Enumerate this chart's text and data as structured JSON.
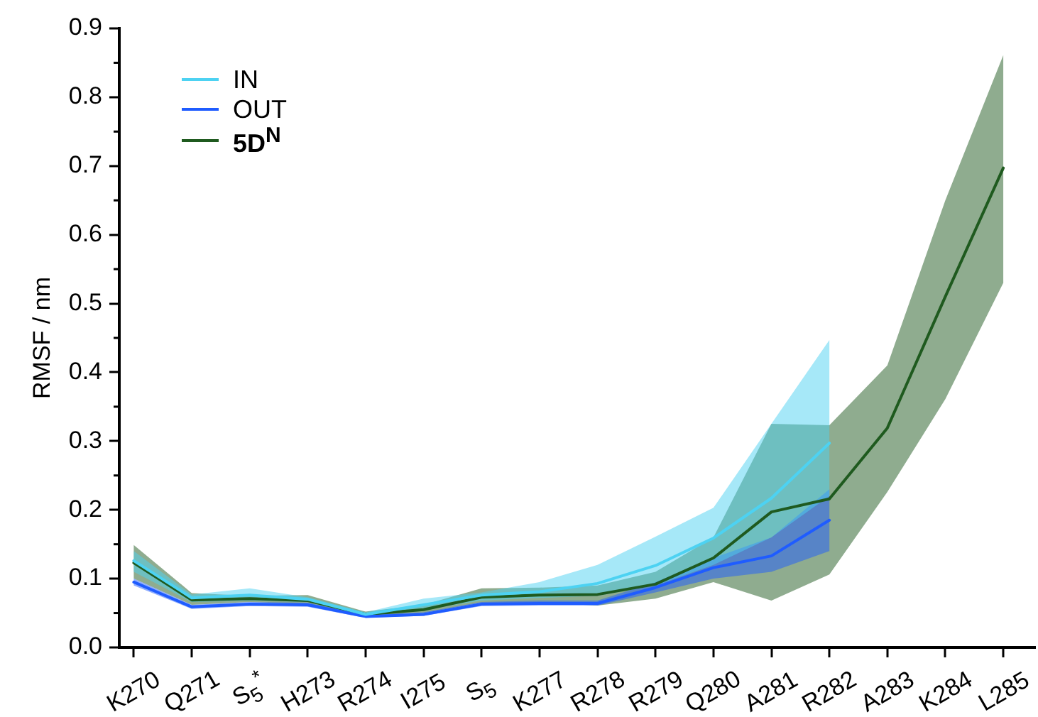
{
  "chart_data": {
    "type": "line",
    "ylabel": "RMSF / nm",
    "categories": [
      "K270",
      "Q271",
      "S$_{5}$$^{*}$",
      "H273",
      "R274",
      "I275",
      "S$_{5}$",
      "K277",
      "R278",
      "R279",
      "Q280",
      "A281",
      "R282",
      "A283",
      "K284",
      "L285"
    ],
    "ylim": [
      0,
      0.9
    ],
    "yticks": [
      {
        "value": 0,
        "label": "0.0"
      },
      {
        "value": 0.05,
        "label": null
      },
      0.1,
      {
        "value": 0.15,
        "label": null
      },
      0.2,
      {
        "value": 0.25,
        "label": null
      },
      0.3,
      {
        "value": 0.35,
        "label": null
      },
      0.4,
      {
        "value": 0.45,
        "label": null
      },
      0.5,
      {
        "value": 0.55,
        "label": null
      },
      0.6,
      {
        "value": 0.65,
        "label": null
      },
      0.7,
      {
        "value": 0.75,
        "label": null
      },
      0.8,
      {
        "value": 0.85,
        "label": null
      },
      0.9
    ],
    "legend": "top left",
    "series": [
      {
        "name": "IN",
        "color": "#4dd2f2",
        "values": [
          0.126,
          0.072,
          0.076,
          0.07,
          0.048,
          0.062,
          0.076,
          0.081,
          0.093,
          0.119,
          0.159,
          0.217,
          0.297,
          null,
          null,
          null
        ],
        "lower": [
          0.11,
          0.066,
          0.068,
          0.066,
          0.046,
          0.055,
          0.068,
          0.072,
          0.075,
          0.09,
          0.12,
          0.16,
          0.22,
          null,
          null,
          null
        ],
        "upper": [
          0.14,
          0.077,
          0.086,
          0.073,
          0.051,
          0.071,
          0.08,
          0.095,
          0.12,
          0.161,
          0.203,
          0.325,
          0.447,
          null,
          null,
          null
        ]
      },
      {
        "name": "OUT",
        "color": "#1f5cff",
        "values": [
          0.095,
          0.059,
          0.063,
          0.062,
          0.045,
          0.048,
          0.063,
          0.064,
          0.064,
          0.087,
          0.116,
          0.133,
          0.185,
          null,
          null,
          null
        ],
        "lower": [
          0.09,
          0.056,
          0.06,
          0.059,
          0.043,
          0.046,
          0.06,
          0.061,
          0.061,
          0.08,
          0.1,
          0.11,
          0.14,
          null,
          null,
          null
        ],
        "upper": [
          0.1,
          0.062,
          0.066,
          0.065,
          0.047,
          0.051,
          0.066,
          0.068,
          0.068,
          0.095,
          0.13,
          0.16,
          0.23,
          null,
          null,
          null
        ]
      },
      {
        "name": "5D$^{N}$",
        "color": "#1f5a1f",
        "values": [
          0.123,
          0.069,
          0.071,
          0.068,
          0.048,
          0.055,
          0.073,
          0.076,
          0.077,
          0.092,
          0.13,
          0.197,
          0.216,
          0.319,
          0.51,
          0.697
        ],
        "lower": [
          0.1,
          0.062,
          0.066,
          0.063,
          0.046,
          0.05,
          0.065,
          0.065,
          0.061,
          0.071,
          0.095,
          0.068,
          0.106,
          0.226,
          0.361,
          0.53
        ],
        "upper": [
          0.149,
          0.079,
          0.075,
          0.076,
          0.052,
          0.062,
          0.086,
          0.087,
          0.09,
          0.11,
          0.16,
          0.325,
          0.323,
          0.41,
          0.65,
          0.861
        ]
      }
    ]
  }
}
